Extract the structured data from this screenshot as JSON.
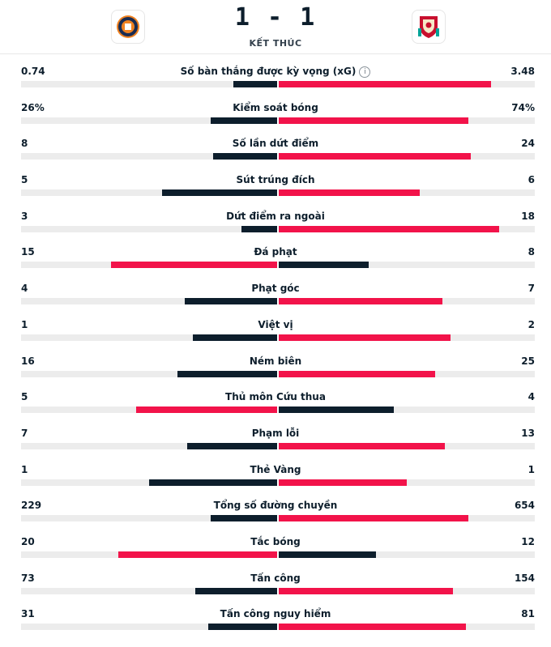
{
  "match": {
    "home_team_crest": "luton-town-crest",
    "away_team_crest": "liverpool-crest",
    "score": "1 - 1",
    "status": "KẾT THÚC"
  },
  "colors": {
    "winner": "#f2134a",
    "loser": "#0d1e2c",
    "track": "#ececec"
  },
  "stats": [
    {
      "label": "Số bàn thắng được kỳ vọng (xG)",
      "home": "0.74",
      "away": "3.48",
      "home_frac": 0.17,
      "away_frac": 0.83,
      "info": "i"
    },
    {
      "label": "Kiểm soát bóng",
      "home": "26%",
      "away": "74%",
      "home_frac": 0.26,
      "away_frac": 0.74
    },
    {
      "label": "Số lần dứt điểm",
      "home": "8",
      "away": "24",
      "home_frac": 0.25,
      "away_frac": 0.75
    },
    {
      "label": "Sút trúng đích",
      "home": "5",
      "away": "6",
      "home_frac": 0.45,
      "away_frac": 0.55
    },
    {
      "label": "Dứt điểm ra ngoài",
      "home": "3",
      "away": "18",
      "home_frac": 0.14,
      "away_frac": 0.86
    },
    {
      "label": "Đá phạt",
      "home": "15",
      "away": "8",
      "home_frac": 0.65,
      "away_frac": 0.35
    },
    {
      "label": "Phạt góc",
      "home": "4",
      "away": "7",
      "home_frac": 0.36,
      "away_frac": 0.64
    },
    {
      "label": "Việt vị",
      "home": "1",
      "away": "2",
      "home_frac": 0.33,
      "away_frac": 0.67
    },
    {
      "label": "Ném biên",
      "home": "16",
      "away": "25",
      "home_frac": 0.39,
      "away_frac": 0.61
    },
    {
      "label": "Thủ môn Cứu thua",
      "home": "5",
      "away": "4",
      "home_frac": 0.55,
      "away_frac": 0.45
    },
    {
      "label": "Phạm lỗi",
      "home": "7",
      "away": "13",
      "home_frac": 0.35,
      "away_frac": 0.65
    },
    {
      "label": "Thẻ Vàng",
      "home": "1",
      "away": "1",
      "home_frac": 0.5,
      "away_frac": 0.5
    },
    {
      "label": "Tổng số đường chuyền",
      "home": "229",
      "away": "654",
      "home_frac": 0.26,
      "away_frac": 0.74
    },
    {
      "label": "Tắc bóng",
      "home": "20",
      "away": "12",
      "home_frac": 0.62,
      "away_frac": 0.38
    },
    {
      "label": "Tấn công",
      "home": "73",
      "away": "154",
      "home_frac": 0.32,
      "away_frac": 0.68
    },
    {
      "label": "Tấn công nguy hiểm",
      "home": "31",
      "away": "81",
      "home_frac": 0.27,
      "away_frac": 0.73
    }
  ]
}
